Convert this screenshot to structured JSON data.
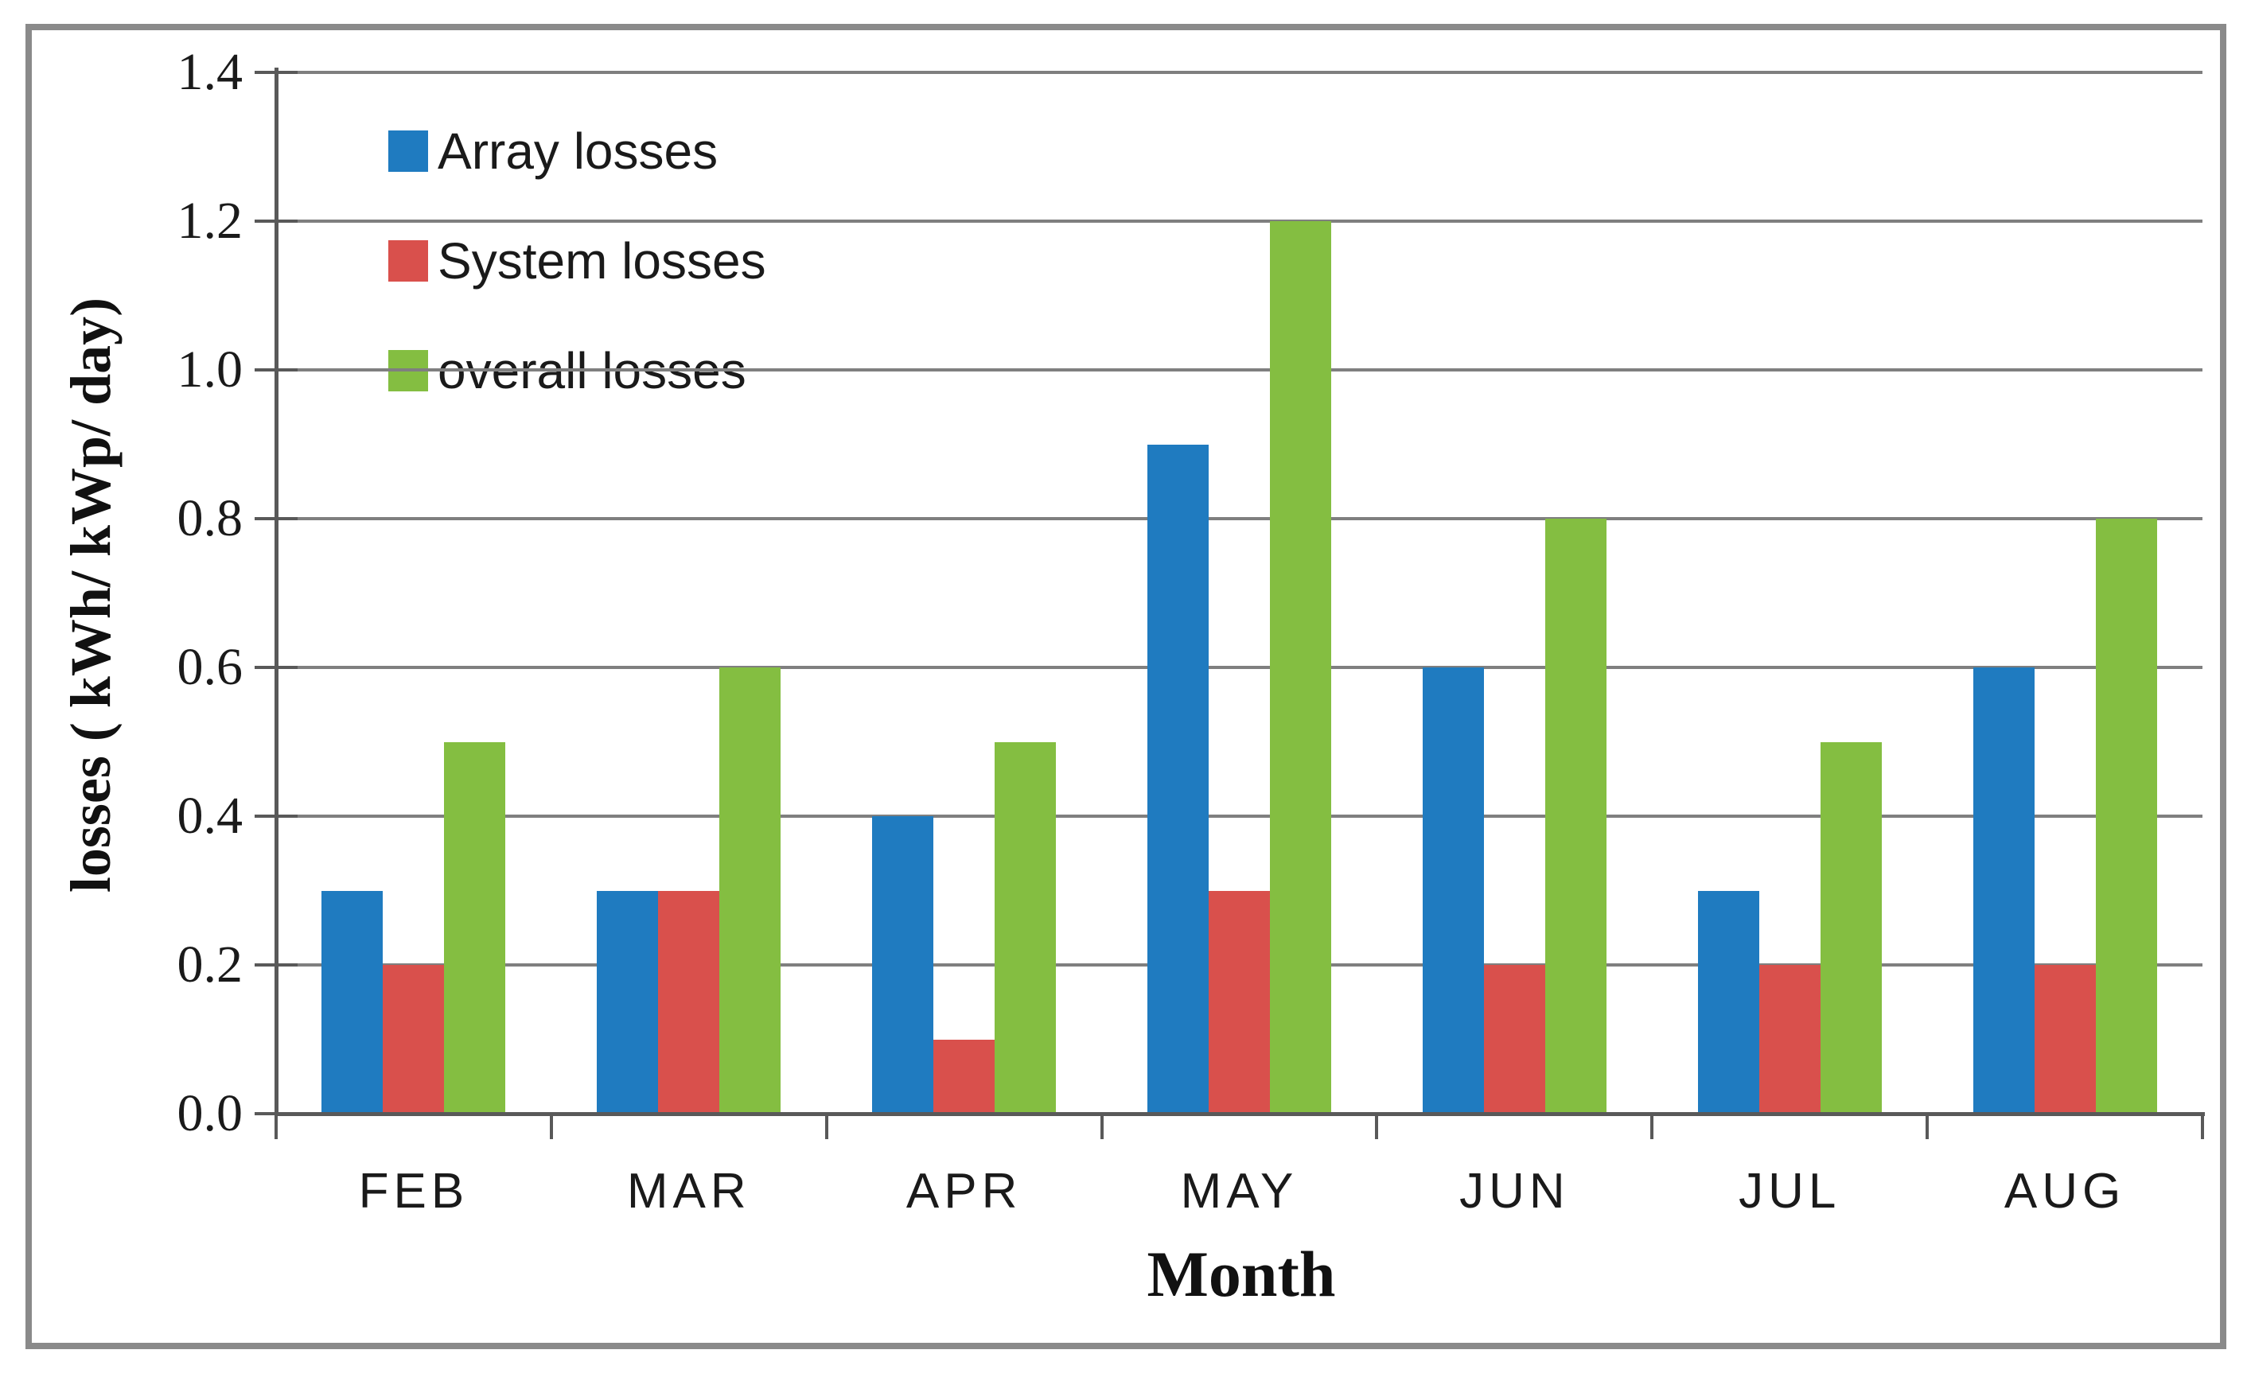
{
  "colors": {
    "background": "#ffffff",
    "frame": "#8a8a8a",
    "grid": "#7f7f7f",
    "axis": "#595959",
    "text": "#1a1a1a",
    "bar_blue": "#1f7bc0",
    "bar_red": "#d9504c",
    "bar_green": "#84be41"
  },
  "chart_data": {
    "type": "bar",
    "title": "",
    "xlabel": "Month",
    "ylabel": "losses ( kWh/ kWp/ day)",
    "categories": [
      "FEB",
      "MAR",
      "APR",
      "MAY",
      "JUN",
      "JUL",
      "AUG"
    ],
    "series": [
      {
        "name": "Array losses",
        "color": "#1f7bc0",
        "values": [
          0.3,
          0.3,
          0.4,
          0.9,
          0.6,
          0.3,
          0.6
        ]
      },
      {
        "name": "System losses",
        "color": "#d9504c",
        "values": [
          0.2,
          0.3,
          0.1,
          0.3,
          0.2,
          0.2,
          0.2
        ]
      },
      {
        "name": "overall losses",
        "color": "#84be41",
        "values": [
          0.5,
          0.6,
          0.5,
          1.2,
          0.8,
          0.5,
          0.8
        ]
      }
    ],
    "ylim": [
      0,
      1.4
    ],
    "ytick_step": 0.2,
    "ytick_labels": [
      "0.0",
      "0.2",
      "0.4",
      "0.6",
      "0.8",
      "1.0",
      "1.2",
      "1.4"
    ],
    "grid": true,
    "legend_position": "upper-left-inside"
  }
}
